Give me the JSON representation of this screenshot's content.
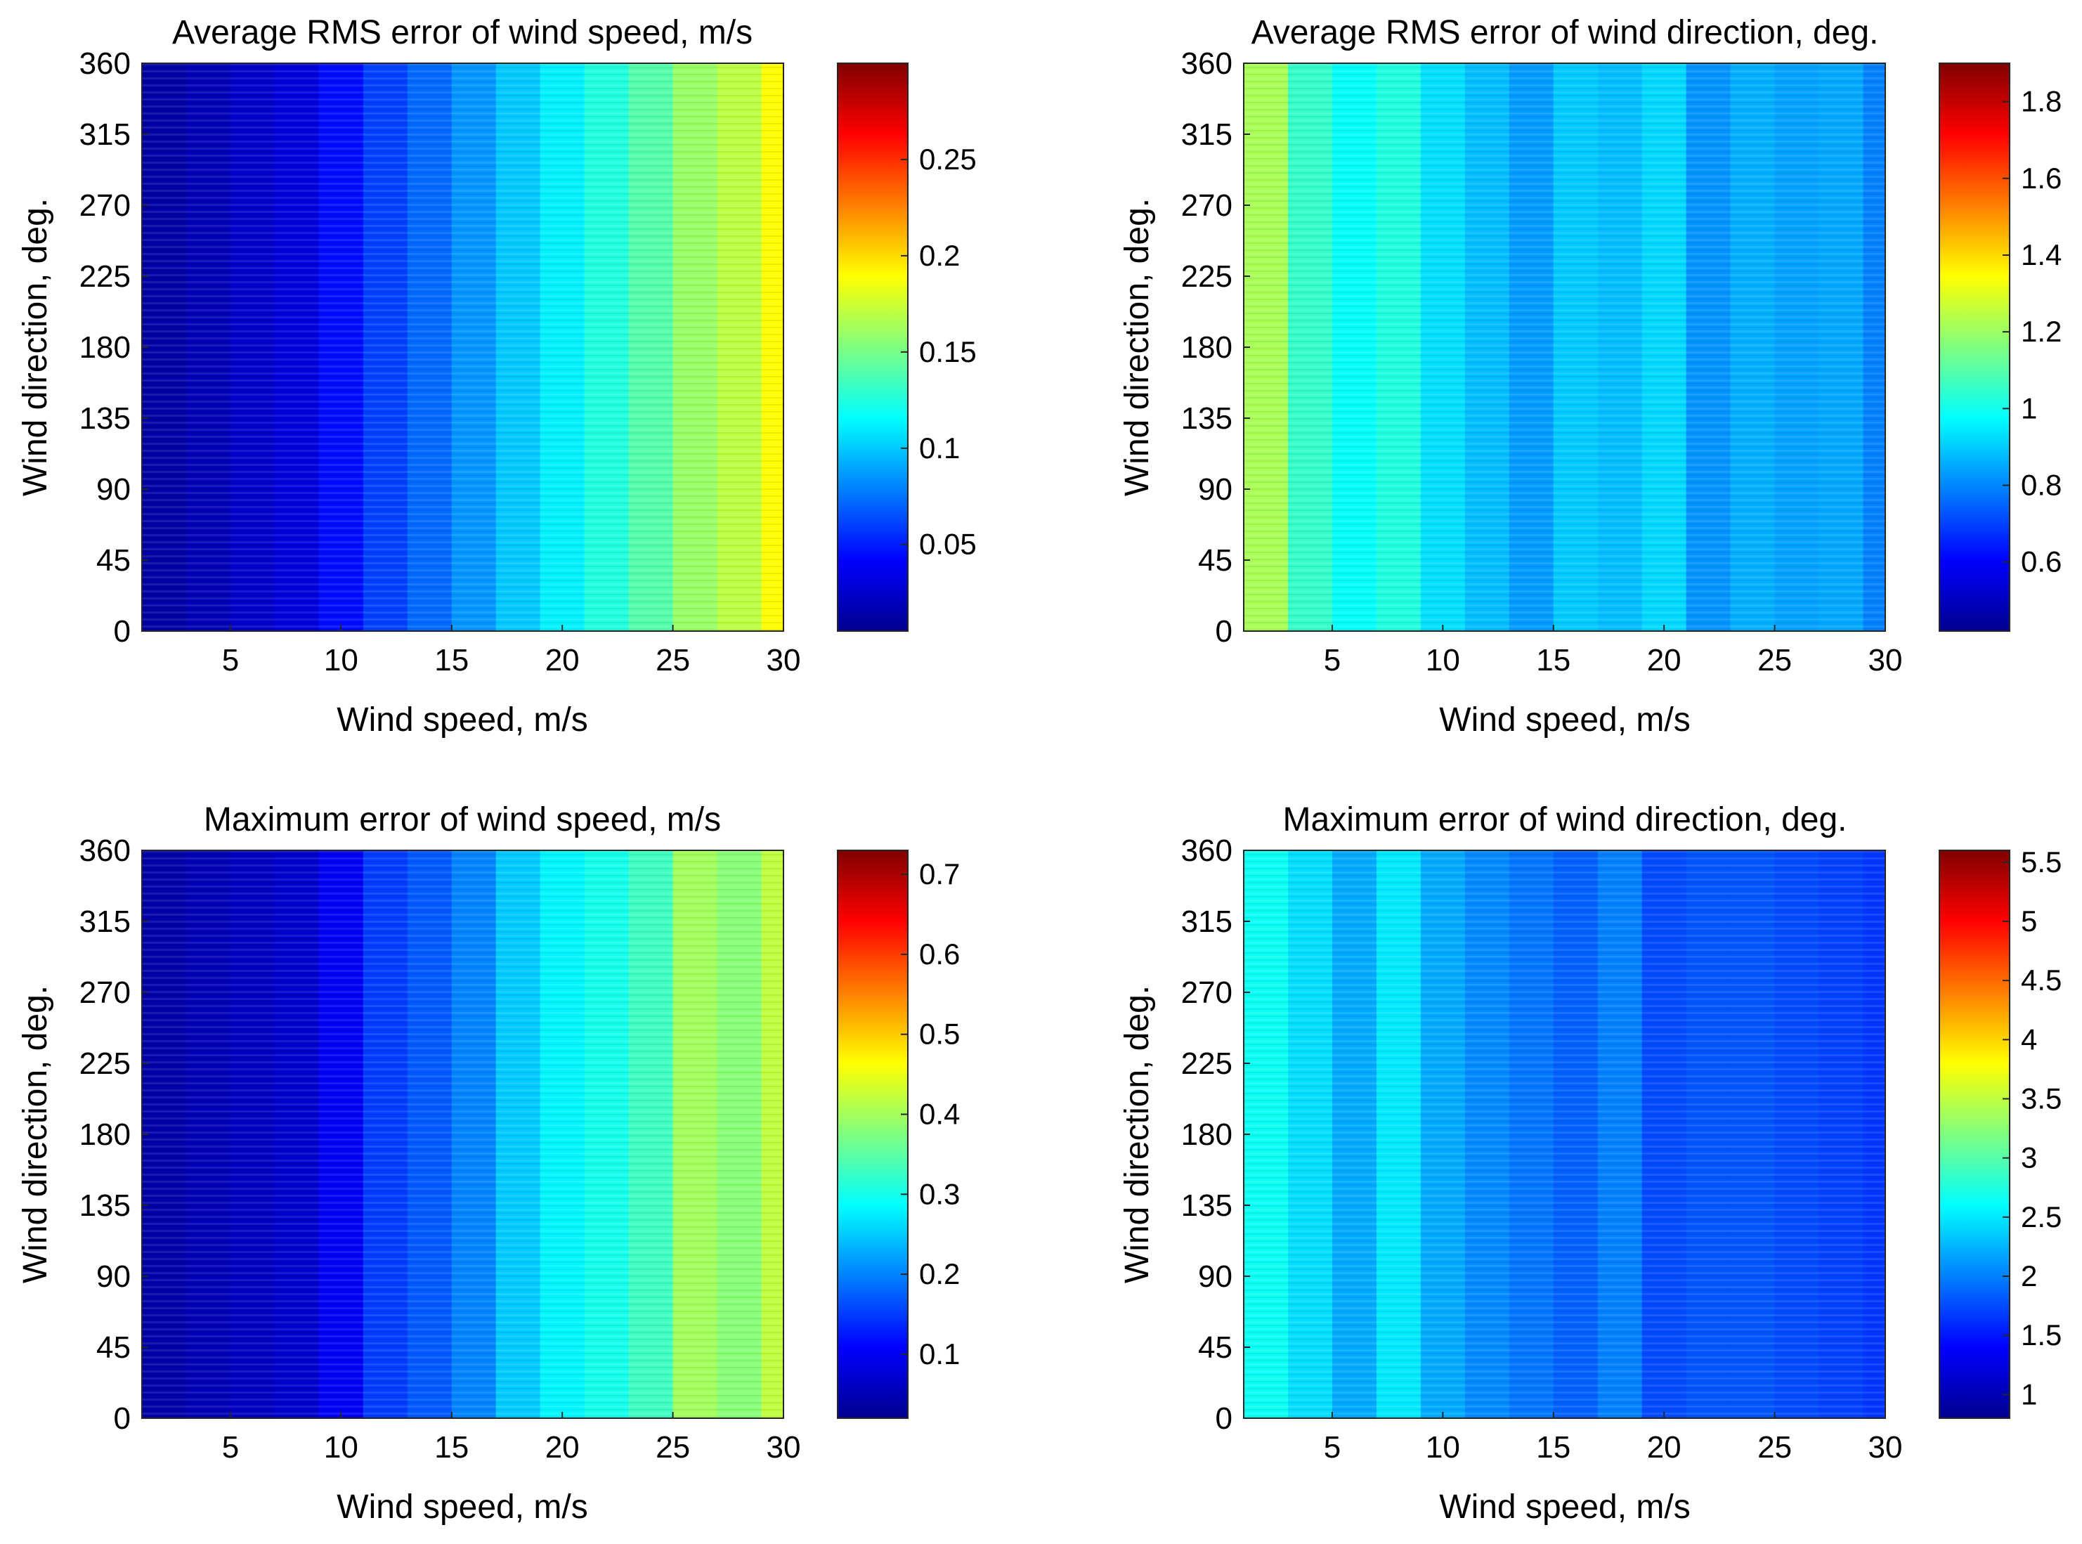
{
  "figure": {
    "panels": [
      {
        "title": "Average RMS error of wind speed, m/s",
        "xlabel": "Wind speed, m/s",
        "ylabel": "Wind direction, deg."
      },
      {
        "title": "Average RMS error of wind direction, deg.",
        "xlabel": "Wind speed, m/s",
        "ylabel": "Wind direction, deg."
      },
      {
        "title": "Maximum error of wind speed, m/s",
        "xlabel": "Wind speed, m/s",
        "ylabel": "Wind direction, deg."
      },
      {
        "title": "Maximum error of wind direction, deg.",
        "xlabel": "Wind speed, m/s",
        "ylabel": "Wind direction, deg."
      }
    ]
  },
  "chart_data": [
    {
      "type": "heatmap",
      "title": "Average RMS error of wind speed, m/s",
      "xlabel": "Wind speed, m/s",
      "ylabel": "Wind direction, deg.",
      "xlim": [
        1,
        30
      ],
      "ylim": [
        0,
        360
      ],
      "xticks": [
        5,
        10,
        15,
        20,
        25,
        30
      ],
      "yticks": [
        0,
        45,
        90,
        135,
        180,
        225,
        270,
        315,
        360
      ],
      "colorbar": {
        "min": 0.005,
        "max": 0.3,
        "ticks": [
          0.05,
          0.1,
          0.15,
          0.2,
          0.25
        ]
      },
      "x_bins": [
        [
          1,
          3
        ],
        [
          3,
          5
        ],
        [
          5,
          7
        ],
        [
          7,
          9
        ],
        [
          9,
          11
        ],
        [
          11,
          13
        ],
        [
          13,
          15
        ],
        [
          15,
          17
        ],
        [
          17,
          19
        ],
        [
          19,
          21
        ],
        [
          21,
          23
        ],
        [
          23,
          25
        ],
        [
          25,
          27
        ],
        [
          27,
          29
        ],
        [
          29,
          30
        ]
      ],
      "values": [
        0.012,
        0.018,
        0.024,
        0.03,
        0.045,
        0.06,
        0.072,
        0.085,
        0.1,
        0.112,
        0.125,
        0.14,
        0.16,
        0.17,
        0.19
      ]
    },
    {
      "type": "heatmap",
      "title": "Average RMS error of wind direction, deg.",
      "xlabel": "Wind speed, m/s",
      "ylabel": "Wind direction, deg.",
      "xlim": [
        1,
        30
      ],
      "ylim": [
        0,
        360
      ],
      "xticks": [
        5,
        10,
        15,
        20,
        25,
        30
      ],
      "yticks": [
        0,
        45,
        90,
        135,
        180,
        225,
        270,
        315,
        360
      ],
      "colorbar": {
        "min": 0.42,
        "max": 1.9,
        "ticks": [
          0.6,
          0.8,
          1,
          1.2,
          1.4,
          1.6,
          1.8
        ]
      },
      "x_bins": [
        [
          1,
          3
        ],
        [
          3,
          5
        ],
        [
          5,
          7
        ],
        [
          7,
          9
        ],
        [
          9,
          11
        ],
        [
          11,
          13
        ],
        [
          13,
          15
        ],
        [
          15,
          17
        ],
        [
          17,
          19
        ],
        [
          19,
          21
        ],
        [
          21,
          23
        ],
        [
          23,
          25
        ],
        [
          25,
          27
        ],
        [
          27,
          29
        ],
        [
          29,
          30
        ]
      ],
      "values": [
        1.22,
        1.05,
        0.98,
        1.02,
        0.93,
        0.88,
        0.83,
        0.9,
        0.88,
        0.92,
        0.82,
        0.86,
        0.84,
        0.85,
        0.79
      ]
    },
    {
      "type": "heatmap",
      "title": "Maximum error of wind speed, m/s",
      "xlabel": "Wind speed, m/s",
      "ylabel": "Wind direction, deg.",
      "xlim": [
        1,
        30
      ],
      "ylim": [
        0,
        360
      ],
      "xticks": [
        5,
        10,
        15,
        20,
        25,
        30
      ],
      "yticks": [
        0,
        45,
        90,
        135,
        180,
        225,
        270,
        315,
        360
      ],
      "colorbar": {
        "min": 0.02,
        "max": 0.73,
        "ticks": [
          0.1,
          0.2,
          0.3,
          0.4,
          0.5,
          0.6,
          0.7
        ]
      },
      "x_bins": [
        [
          1,
          3
        ],
        [
          3,
          5
        ],
        [
          5,
          7
        ],
        [
          7,
          9
        ],
        [
          9,
          11
        ],
        [
          11,
          13
        ],
        [
          13,
          15
        ],
        [
          15,
          17
        ],
        [
          17,
          19
        ],
        [
          19,
          21
        ],
        [
          21,
          23
        ],
        [
          23,
          25
        ],
        [
          25,
          27
        ],
        [
          27,
          29
        ],
        [
          29,
          30
        ]
      ],
      "values": [
        0.04,
        0.05,
        0.06,
        0.07,
        0.1,
        0.15,
        0.17,
        0.2,
        0.25,
        0.28,
        0.3,
        0.33,
        0.4,
        0.38,
        0.42
      ]
    },
    {
      "type": "heatmap",
      "title": "Maximum error of wind direction, deg.",
      "xlabel": "Wind speed, m/s",
      "ylabel": "Wind direction, deg.",
      "xlim": [
        1,
        30
      ],
      "ylim": [
        0,
        360
      ],
      "xticks": [
        5,
        10,
        15,
        20,
        25,
        30
      ],
      "yticks": [
        0,
        45,
        90,
        135,
        180,
        225,
        270,
        315,
        360
      ],
      "colorbar": {
        "min": 0.8,
        "max": 5.6,
        "ticks": [
          1,
          1.5,
          2,
          2.5,
          3,
          3.5,
          4,
          4.5,
          5,
          5.5
        ]
      },
      "x_bins": [
        [
          1,
          3
        ],
        [
          3,
          5
        ],
        [
          5,
          7
        ],
        [
          7,
          9
        ],
        [
          9,
          11
        ],
        [
          11,
          13
        ],
        [
          13,
          15
        ],
        [
          15,
          17
        ],
        [
          17,
          19
        ],
        [
          19,
          21
        ],
        [
          21,
          23
        ],
        [
          23,
          25
        ],
        [
          25,
          27
        ],
        [
          27,
          29
        ],
        [
          29,
          30
        ]
      ],
      "values": [
        2.65,
        2.45,
        2.2,
        2.5,
        2.2,
        2.05,
        1.95,
        1.85,
        2.0,
        1.75,
        1.8,
        1.8,
        1.75,
        1.7,
        1.65
      ]
    }
  ]
}
